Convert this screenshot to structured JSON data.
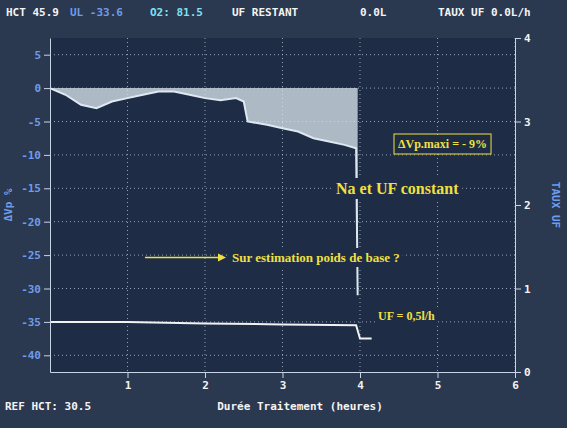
{
  "chart_data": {
    "type": "line",
    "header": [
      "HCT 45.9",
      "UL -33.6",
      "O2: 81.5",
      "UF RESTANT",
      "0.0L",
      "TAUX UF 0.0L/h"
    ],
    "reference": "REF HCT: 30.5",
    "x_label": "Durée Traitement (heures)",
    "y_label": "ΔVp %",
    "y2_label": "TAUX UF",
    "xlim": [
      0,
      6
    ],
    "xticks": [
      1,
      2,
      3,
      4,
      5,
      6
    ],
    "ylim": [
      -42.5,
      7.5
    ],
    "yticks": [
      5,
      0,
      -5,
      -10,
      -15,
      -20,
      -25,
      -30,
      -35,
      -40
    ],
    "y2lim": [
      0,
      4
    ],
    "y2ticks": [
      0,
      1,
      2,
      3,
      4
    ],
    "grid": true,
    "series": [
      {
        "type": "area",
        "color": "#dfe8f2",
        "x": [
          0,
          0.2,
          0.4,
          0.6,
          0.8,
          1.0,
          1.2,
          1.4,
          1.6,
          1.8,
          2.0,
          2.2,
          2.4,
          2.5,
          2.55,
          2.8,
          3.0,
          3.2,
          3.4,
          3.6,
          3.8,
          3.95,
          3.97
        ],
        "values": [
          0,
          -1,
          -2.5,
          -3,
          -2,
          -1.5,
          -1,
          -0.5,
          -0.5,
          -1,
          -1.5,
          -1.8,
          -1.5,
          -2,
          -5,
          -5.5,
          -6,
          -6.5,
          -7.5,
          -8,
          -8.5,
          -9,
          -31
        ]
      },
      {
        "type": "line",
        "axis": "y2",
        "color": "#f2f2f2",
        "x": [
          0,
          1,
          2,
          3,
          3.95,
          4,
          4.15
        ],
        "values": [
          0.6,
          0.6,
          0.58,
          0.57,
          0.56,
          0.4,
          0.4
        ]
      }
    ],
    "annotations": [
      "ΔVp.maxi = - 9%",
      "Na et UF constant",
      "Sur estimation poids de base ?",
      "UF = 0,5l/h"
    ]
  }
}
